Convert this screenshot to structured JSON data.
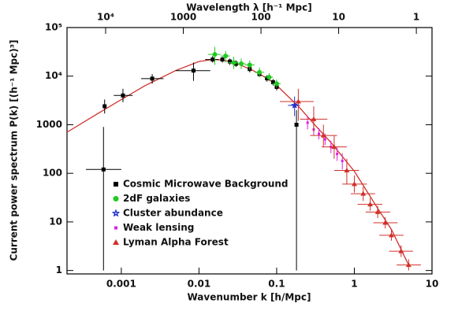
{
  "chart_data": {
    "type": "scatter",
    "x_label": "Wavenumber k [h/Mpc]",
    "x2_label": "Wavelength λ [h⁻¹ Mpc]",
    "y_label": "Current power spectrum P(k) [(h⁻¹ Mpc)³]",
    "log_x": true,
    "log_y": true,
    "xlim": [
      0.0002,
      10
    ],
    "ylim": [
      0.85,
      100000
    ],
    "xticks": [
      0.001,
      0.01,
      0.1,
      1,
      10
    ],
    "x2ticks": [
      {
        "value": 10000,
        "label": "10⁴"
      },
      1000,
      100,
      10,
      1
    ],
    "yticks": [
      {
        "value": 100000,
        "label": "10⁵"
      },
      {
        "value": 10000,
        "label": "10⁴"
      },
      1000,
      100,
      10,
      1
    ],
    "model": {
      "color": "#d0302a",
      "x": [
        0.0002,
        0.0005,
        0.001,
        0.002,
        0.005,
        0.01,
        0.015,
        0.02,
        0.03,
        0.05,
        0.08,
        0.1,
        0.2,
        0.3,
        0.5,
        1,
        2,
        3,
        5
      ],
      "y": [
        700,
        1700,
        3300,
        6300,
        13000,
        20000,
        22000,
        21500,
        18500,
        13000,
        8500,
        6500,
        2200,
        1050,
        430,
        110,
        19,
        7,
        1.3
      ]
    },
    "series": [
      {
        "name": "Cosmic Microwave Background",
        "color": "#000000",
        "marker": "square",
        "x": [
          0.00059,
          0.00061,
          0.00105,
          0.0025,
          0.0085,
          0.015,
          0.02,
          0.025,
          0.03,
          0.045,
          0.06,
          0.075,
          0.09,
          0.1,
          0.18
        ],
        "y": [
          120,
          2400,
          4000,
          8900,
          13000,
          22000,
          22000,
          20000,
          18000,
          14000,
          11000,
          9000,
          7500,
          6000,
          1000
        ],
        "y_lo": [
          1,
          1700,
          2900,
          7000,
          8000,
          19000,
          19000,
          17000,
          15500,
          12000,
          9500,
          7700,
          6400,
          5100,
          1
        ],
        "y_hi": [
          900,
          3300,
          5500,
          11000,
          19000,
          26000,
          25000,
          23000,
          21000,
          16000,
          12700,
          10400,
          8700,
          7000,
          2000
        ],
        "x_lo": [
          0.00035,
          null,
          0.0008,
          0.0018,
          0.005,
          0.012,
          null,
          null,
          null,
          null,
          null,
          null,
          null,
          null,
          null
        ],
        "x_hi": [
          0.001,
          null,
          0.0014,
          0.0035,
          0.014,
          0.018,
          null,
          null,
          null,
          null,
          null,
          null,
          null,
          null,
          null
        ]
      },
      {
        "name": "2dF galaxies",
        "color": "#22c922",
        "marker": "circle",
        "x": [
          0.016,
          0.022,
          0.028,
          0.035,
          0.045,
          0.06,
          0.08,
          0.1
        ],
        "y": [
          28000,
          26000,
          19000,
          18000,
          17000,
          12000,
          9500,
          7000
        ],
        "y_lo": [
          17000,
          19000,
          14000,
          14000,
          13500,
          9500,
          7800,
          5800
        ],
        "y_hi": [
          40000,
          33000,
          25000,
          23000,
          21000,
          15000,
          11500,
          8500
        ],
        "x_lo": [
          0.013,
          0.019,
          0.024,
          0.03,
          0.039,
          0.052,
          0.07,
          0.088
        ],
        "x_hi": [
          0.019,
          0.025,
          0.032,
          0.04,
          0.052,
          0.069,
          0.09,
          0.113
        ]
      },
      {
        "name": "Cluster abundance",
        "color": "#1f2fd0",
        "marker": "star",
        "x": [
          0.17
        ],
        "y": [
          2500
        ],
        "y_lo": [
          1500
        ],
        "y_hi": [
          3800
        ],
        "x_lo": [
          0.14
        ],
        "x_hi": [
          0.2
        ]
      },
      {
        "name": "Weak lensing",
        "color": "#e020e0",
        "marker": "small",
        "x": [
          0.25,
          0.3,
          0.35,
          0.42,
          0.5,
          0.6,
          0.7
        ],
        "y": [
          1100,
          800,
          650,
          500,
          350,
          250,
          180
        ],
        "y_lo": [
          800,
          600,
          500,
          380,
          260,
          180,
          120
        ],
        "y_hi": [
          1500,
          1050,
          850,
          660,
          470,
          340,
          260
        ],
        "x_lo": [
          null,
          null,
          null,
          null,
          null,
          null,
          null
        ],
        "x_hi": [
          null,
          null,
          null,
          null,
          null,
          null,
          null
        ]
      },
      {
        "name": "Lyman Alpha Forest",
        "color": "#d0302a",
        "marker": "triangle",
        "x": [
          0.19,
          0.3,
          0.4,
          0.55,
          0.8,
          1.0,
          1.3,
          1.6,
          2.0,
          2.5,
          3.0,
          4.0,
          5.0
        ],
        "y": [
          3000,
          1300,
          600,
          350,
          115,
          60,
          38,
          23,
          16,
          9.6,
          5.3,
          2.5,
          1.3
        ],
        "y_lo": [
          1200,
          700,
          350,
          200,
          60,
          40,
          27,
          17,
          12,
          7.3,
          4.1,
          1.9,
          1.0
        ],
        "y_hi": [
          5500,
          2400,
          1000,
          600,
          200,
          90,
          53,
          31,
          21,
          12.5,
          6.9,
          3.3,
          1.7
        ],
        "x_lo": [
          0.11,
          0.2,
          0.27,
          0.38,
          0.55,
          0.7,
          0.9,
          1.1,
          1.4,
          1.75,
          2.1,
          2.8,
          3.5
        ],
        "x_hi": [
          0.3,
          0.45,
          0.6,
          0.8,
          1.15,
          1.45,
          1.85,
          2.3,
          2.9,
          3.6,
          4.3,
          5.7,
          7.2
        ]
      }
    ]
  }
}
